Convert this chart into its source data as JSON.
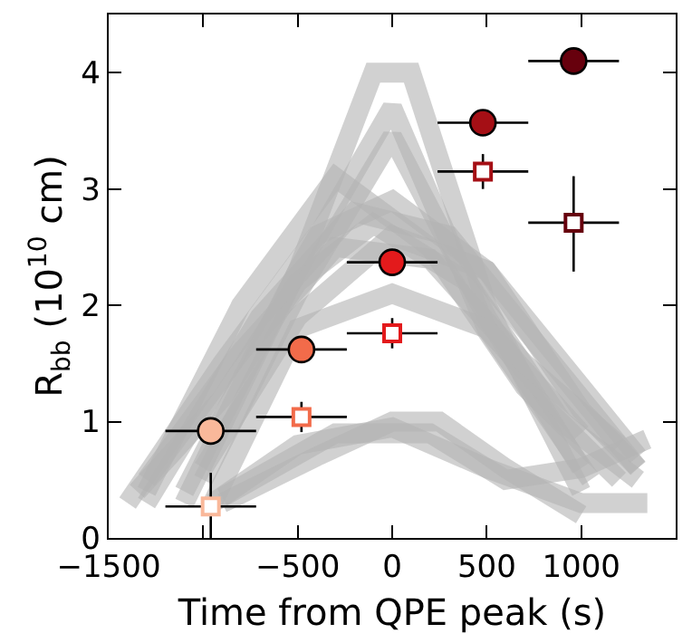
{
  "chart_data": {
    "type": "line",
    "xlabel": "Time from QPE peak (s)",
    "ylabel": "R$_{bb}$ (10$^{10}$ cm)",
    "xlim": [
      -1500,
      1500
    ],
    "ylim": [
      0,
      4.5
    ],
    "xticks": [
      {
        "value": -1500,
        "label": "−1500"
      },
      {
        "value": -1000,
        "label": null
      },
      {
        "value": -500,
        "label": "−500"
      },
      0,
      500,
      1000
    ],
    "yticks": [
      0,
      1,
      2,
      3,
      4
    ],
    "line_style": "solid",
    "series": [
      {
        "marker": "none",
        "color": "#b4b4b4",
        "x": [
          -1100,
          -500,
          -100,
          100,
          500,
          1000
        ],
        "values": [
          0.3,
          2.3,
          4.0,
          4.0,
          2.0,
          0.4
        ]
      },
      {
        "marker": "none",
        "color": "#b4b4b4",
        "x": [
          -1100,
          -500,
          0,
          500,
          1050
        ],
        "values": [
          0.4,
          2.3,
          3.7,
          1.8,
          0.5
        ]
      },
      {
        "marker": "none",
        "color": "#b4b4b4",
        "x": [
          -1000,
          -500,
          0,
          500,
          1000
        ],
        "values": [
          0.5,
          2.1,
          3.45,
          1.9,
          0.6
        ]
      },
      {
        "marker": "none",
        "color": "#b4b4b4",
        "x": [
          -1300,
          -800,
          -300,
          200,
          700,
          1200
        ],
        "values": [
          0.4,
          2.0,
          3.1,
          2.5,
          1.3,
          0.5
        ]
      },
      {
        "marker": "none",
        "color": "#b4b4b4",
        "x": [
          -1400,
          -900,
          -400,
          0,
          500,
          1000,
          1300
        ],
        "values": [
          0.3,
          1.5,
          2.6,
          2.9,
          2.3,
          1.1,
          0.6
        ]
      },
      {
        "marker": "none",
        "color": "#b4b4b4",
        "x": [
          -1350,
          -900,
          -500,
          -100,
          400,
          900,
          1300
        ],
        "values": [
          0.4,
          1.2,
          2.2,
          2.7,
          2.2,
          1.0,
          0.5
        ]
      },
      {
        "marker": "none",
        "color": "#b4b4b4",
        "x": [
          -1300,
          -800,
          -300,
          200,
          700,
          1200
        ],
        "values": [
          0.5,
          1.6,
          2.5,
          2.4,
          1.5,
          0.8
        ]
      },
      {
        "marker": "none",
        "color": "#b4b4b4",
        "x": [
          -1000,
          -500,
          0,
          500,
          1000,
          1300
        ],
        "values": [
          0.6,
          1.9,
          2.6,
          2.3,
          1.3,
          0.7
        ]
      },
      {
        "marker": "none",
        "color": "#b4b4b4",
        "x": [
          -1300,
          -700,
          -200,
          300,
          800,
          1300
        ],
        "values": [
          0.3,
          1.9,
          2.8,
          2.6,
          1.6,
          0.6
        ]
      },
      {
        "marker": "none",
        "color": "#b4b4b4",
        "x": [
          -950,
          -500,
          0,
          500,
          1000
        ],
        "values": [
          0.3,
          1.8,
          2.1,
          1.8,
          0.9
        ]
      },
      {
        "marker": "none",
        "color": "#b4b4b4",
        "x": [
          -900,
          -400,
          0,
          250,
          600,
          1000
        ],
        "values": [
          0.3,
          0.7,
          1.0,
          1.0,
          0.6,
          0.2
        ]
      },
      {
        "marker": "none",
        "color": "#b4b4b4",
        "x": [
          -950,
          -500,
          0,
          500,
          1000,
          1350
        ],
        "values": [
          0.3,
          0.8,
          0.95,
          0.6,
          0.3,
          0.3
        ]
      },
      {
        "marker": "none",
        "color": "#b4b4b4",
        "x": [
          -900,
          -300,
          200,
          600,
          1000,
          1350
        ],
        "values": [
          0.35,
          0.9,
          0.9,
          0.5,
          0.6,
          0.85
        ]
      },
      {
        "type": "scatter",
        "marker": "circle",
        "colors": [
          "#f9b89a",
          "#f26b4a",
          "#e31a1c",
          "#a50f15",
          "#67000d"
        ],
        "x": [
          -960,
          -480,
          0,
          480,
          960
        ],
        "values": [
          0.92,
          1.62,
          2.37,
          3.57,
          4.1
        ],
        "xerrors": [
          240,
          240,
          240,
          240,
          240
        ],
        "errors": [
          null,
          null,
          null,
          null,
          0.08
        ]
      },
      {
        "type": "scatter",
        "marker": "square",
        "colors": [
          "#f9b89a",
          "#f26b4a",
          "#e31a1c",
          "#a50f15",
          "#67000d"
        ],
        "x": [
          -960,
          -480,
          0,
          480,
          960
        ],
        "values": [
          0.27,
          1.04,
          1.76,
          3.15,
          2.71
        ],
        "xerrors": [
          240,
          240,
          240,
          240,
          240
        ],
        "errors": [
          [
            0,
            0.56
          ],
          0.13,
          0.13,
          0.15,
          [
            2.29,
            3.11
          ]
        ]
      }
    ]
  }
}
